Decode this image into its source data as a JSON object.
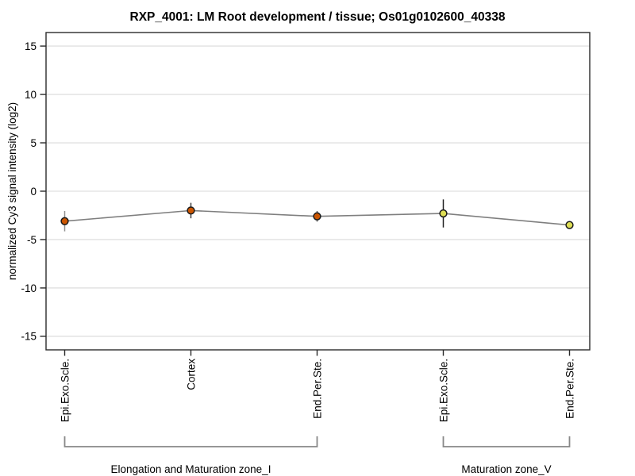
{
  "chart_data": {
    "type": "line",
    "title": "RXP_4001: LM Root development / tissue; Os01g0102600_40338",
    "xlabel": "",
    "ylabel": "normalized Cy3 signal intensity (log2)",
    "ylim": [
      -16.4,
      16.4
    ],
    "yticks": [
      15,
      10,
      5,
      0,
      -5,
      -10,
      -15
    ],
    "grid": true,
    "legend": false,
    "categories": [
      "Epi.Exo.Scle.",
      "Cortex",
      "End.Per.Ste.",
      "Epi.Exo.Scle.",
      "End.Per.Ste."
    ],
    "values": [
      -3.1,
      -2.0,
      -2.6,
      -2.3,
      -3.5
    ],
    "errors": [
      1.05,
      0.8,
      0.55,
      1.45,
      0.2
    ],
    "groups": [
      {
        "label": "Elongation and Maturation zone_I",
        "from": 0,
        "to": 2
      },
      {
        "label": "Maturation zone_V",
        "from": 3,
        "to": 4
      }
    ],
    "line_color": "#7f7f7f",
    "point_colors": [
      "#cc5500",
      "#cc5500",
      "#cc5500",
      "#dede55",
      "#dede55"
    ],
    "point_border_color": "#1a1a1a",
    "error_colors": [
      "#909090",
      "#404040",
      "#606060",
      "#202020",
      "#606060"
    ],
    "grid_color": "#e5e5e5",
    "axis_color": "#2a2a2a",
    "bracket_color": "#888888"
  }
}
